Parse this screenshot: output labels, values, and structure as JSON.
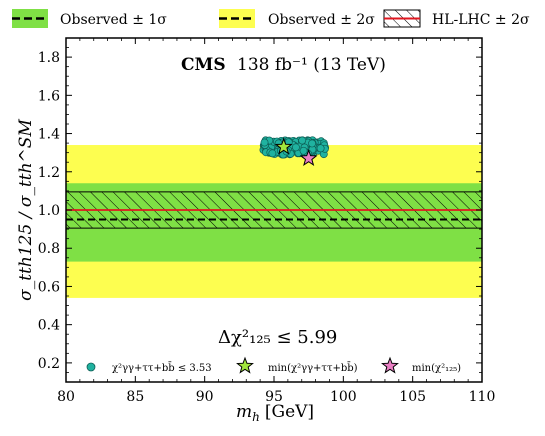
{
  "chart_data": {
    "type": "scatter",
    "title_bold": "CMS",
    "title_rest": "138 fb⁻¹ (13 TeV)",
    "xlabel": "m_h [GeV]",
    "xlabel_main": "m",
    "xlabel_sub": "h",
    "xlabel_unit": "[GeV]",
    "ylabel": "σ_tth125 / σ_tth^SM",
    "xlim": [
      80,
      110
    ],
    "ylim": [
      0.1,
      1.9
    ],
    "x_ticks": [
      80,
      85,
      90,
      95,
      100,
      105,
      110
    ],
    "y_ticks": [
      0.2,
      0.4,
      0.6,
      0.8,
      1.0,
      1.2,
      1.4,
      1.6,
      1.8
    ],
    "x_tick_labels": [
      "80",
      "85",
      "90",
      "95",
      "100",
      "105",
      "110"
    ],
    "y_tick_labels": [
      "0.2",
      "0.4",
      "0.6",
      "0.8",
      "1.0",
      "1.2",
      "1.4",
      "1.6",
      "1.8"
    ],
    "bands": {
      "observed_2sigma": [
        0.54,
        1.34
      ],
      "observed_1sigma": [
        0.73,
        1.14
      ],
      "hl_lhc_2sigma": [
        0.905,
        1.095
      ],
      "observed_central": 0.95,
      "hl_lhc_central": 1.0
    },
    "legend": [
      {
        "label": "Observed ± 1σ",
        "color": "#7fe045"
      },
      {
        "label": "Observed ± 2σ",
        "color": "#fdfe50"
      },
      {
        "label": "HL-LHC ± 2σ",
        "color": "#e0161f"
      }
    ],
    "annotation": "Δχ²₁₂₅ ≤ 5.99",
    "inner_legend": [
      {
        "label": "χ²γγ+ττ+bb̄ ≤ 3.53",
        "marker": "circle",
        "color": "#20b2a0"
      },
      {
        "label": "min(χ²γγ+ττ+bb̄)",
        "marker": "star",
        "color": "#a2e63c"
      },
      {
        "label": "min(χ²₁₂₅)",
        "marker": "star",
        "color": "#ea7fc4"
      }
    ],
    "points_region": {
      "x_range": [
        94.2,
        98.7
      ],
      "y_range": [
        1.29,
        1.365
      ],
      "n_points": 180
    },
    "best_fit_bb_star": {
      "x": 95.7,
      "y": 1.33
    },
    "best_fit_125_star": {
      "x": 97.5,
      "y": 1.27
    }
  },
  "colors": {
    "green_band": "#7fe045",
    "yellow_band": "#fdfe50",
    "red_line": "#e0161f",
    "point_fill": "#20b2a0",
    "point_edge": "#0d5e55",
    "star_green": "#a2e63c",
    "star_pink": "#ea7fc4"
  }
}
